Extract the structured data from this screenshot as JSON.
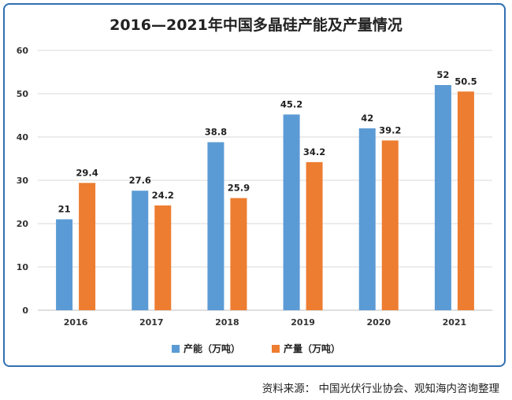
{
  "chart_data": {
    "type": "bar",
    "title": "2016—2021年中国多晶硅产能及产量情况",
    "categories": [
      "2016",
      "2017",
      "2018",
      "2019",
      "2020",
      "2021"
    ],
    "series": [
      {
        "name": "产能（万吨）",
        "values": [
          21,
          27.6,
          38.8,
          45.2,
          42,
          52
        ],
        "labels": [
          "21",
          "27.6",
          "38.8",
          "45.2",
          "42",
          "52"
        ],
        "color": "#5b9bd5"
      },
      {
        "name": "产量（万吨）",
        "values": [
          29.4,
          24.2,
          25.9,
          34.2,
          39.2,
          50.5
        ],
        "labels": [
          "29.4",
          "24.2",
          "25.9",
          "34.2",
          "39.2",
          "50.5"
        ],
        "color": "#ed7d31"
      }
    ],
    "ylim": [
      0,
      60
    ],
    "yticks": [
      "0",
      "10",
      "20",
      "30",
      "40",
      "50",
      "60"
    ],
    "grid": true,
    "legend_position": "bottom"
  },
  "source": "资料来源：  中国光伏行业协会、观知海内咨询整理",
  "colors": {
    "frame": "#2f6fb3",
    "grid": "#d9d9d9"
  }
}
